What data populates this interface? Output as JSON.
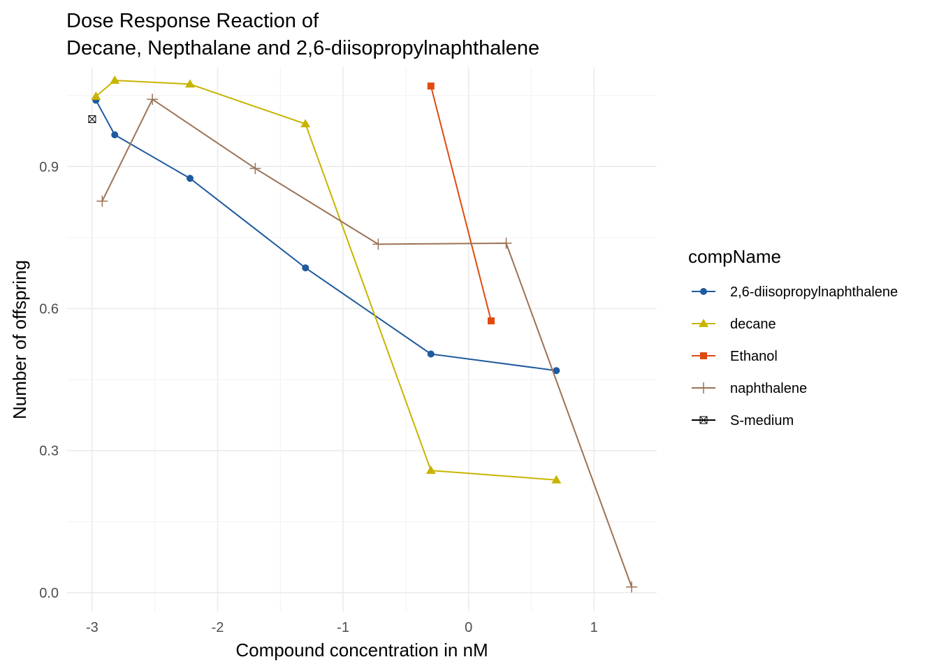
{
  "chart_data": {
    "type": "line",
    "title": [
      "Dose Response Reaction of",
      "Decane, Nepthalane and 2,6-diisopropylnaphthalene"
    ],
    "xlabel": "Compound concentration in nM",
    "ylabel": "Number of offspring",
    "xlim": [
      -3.2,
      1.5
    ],
    "ylim": [
      -0.04,
      1.11
    ],
    "x_ticks": [
      -3,
      -2,
      -1,
      0,
      1
    ],
    "x_tick_labels": [
      "-3",
      "-2",
      "-1",
      "0",
      "1"
    ],
    "y_ticks": [
      0.0,
      0.3,
      0.6,
      0.9
    ],
    "y_tick_labels": [
      "0.0",
      "0.3",
      "0.6",
      "0.9"
    ],
    "grid": true,
    "legend_title": "compName",
    "legend_position": "right",
    "series": [
      {
        "name": "2,6-diisopropylnaphthalene",
        "color": "#1f5a9e",
        "marker": "circle",
        "x": [
          -2.97,
          -2.82,
          -2.22,
          -1.3,
          -0.3,
          0.7
        ],
        "y": [
          1.04,
          0.967,
          0.875,
          0.686,
          0.504,
          0.469
        ]
      },
      {
        "name": "decane",
        "color": "#c8b400",
        "marker": "triangle",
        "x": [
          -2.97,
          -2.82,
          -2.22,
          -1.3,
          -0.3,
          0.7
        ],
        "y": [
          1.048,
          1.082,
          1.074,
          0.99,
          0.258,
          0.238
        ]
      },
      {
        "name": "Ethanol",
        "color": "#e04a10",
        "marker": "square",
        "x": [
          -0.3,
          0.18
        ],
        "y": [
          1.07,
          0.574
        ]
      },
      {
        "name": "naphthalene",
        "color": "#9c7256",
        "marker": "plus",
        "x": [
          -2.92,
          -2.52,
          -1.7,
          -0.72,
          0.3,
          1.3
        ],
        "y": [
          0.827,
          1.042,
          0.896,
          0.736,
          0.738,
          0.012
        ]
      },
      {
        "name": "S-medium",
        "color": "#000000",
        "marker": "boxcross",
        "x": [
          -3.0
        ],
        "y": [
          1.0
        ]
      }
    ]
  }
}
